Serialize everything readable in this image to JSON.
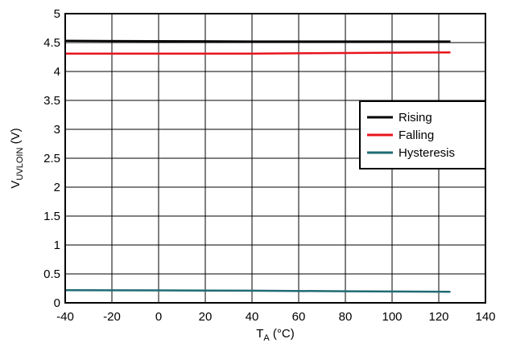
{
  "chart_data": {
    "type": "line",
    "title": "",
    "xlabel": {
      "main": "T",
      "sub": "A",
      "unit": " (°C)"
    },
    "ylabel": {
      "main": "V",
      "sub": "UVLOIN",
      "unit": " (V)"
    },
    "xlim": [
      -40,
      140
    ],
    "ylim": [
      0,
      5
    ],
    "xticks": [
      "-40",
      "-20",
      "0",
      "20",
      "40",
      "60",
      "80",
      "100",
      "120",
      "140"
    ],
    "yticks": [
      "0",
      "0.5",
      "1",
      "1.5",
      "2",
      "2.5",
      "3",
      "3.5",
      "4",
      "4.5",
      "5"
    ],
    "grid": true,
    "legend_position": "right",
    "series": [
      {
        "name": "Rising",
        "color": "#000000",
        "x": [
          -40,
          0,
          40,
          80,
          125
        ],
        "y": [
          4.53,
          4.525,
          4.52,
          4.52,
          4.52
        ]
      },
      {
        "name": "Falling",
        "color": "#e8141c",
        "x": [
          -40,
          0,
          40,
          80,
          125
        ],
        "y": [
          4.31,
          4.31,
          4.31,
          4.32,
          4.33
        ]
      },
      {
        "name": "Hysteresis",
        "color": "#1f6b73",
        "x": [
          -40,
          0,
          40,
          80,
          125
        ],
        "y": [
          0.22,
          0.215,
          0.21,
          0.2,
          0.19
        ]
      }
    ]
  }
}
